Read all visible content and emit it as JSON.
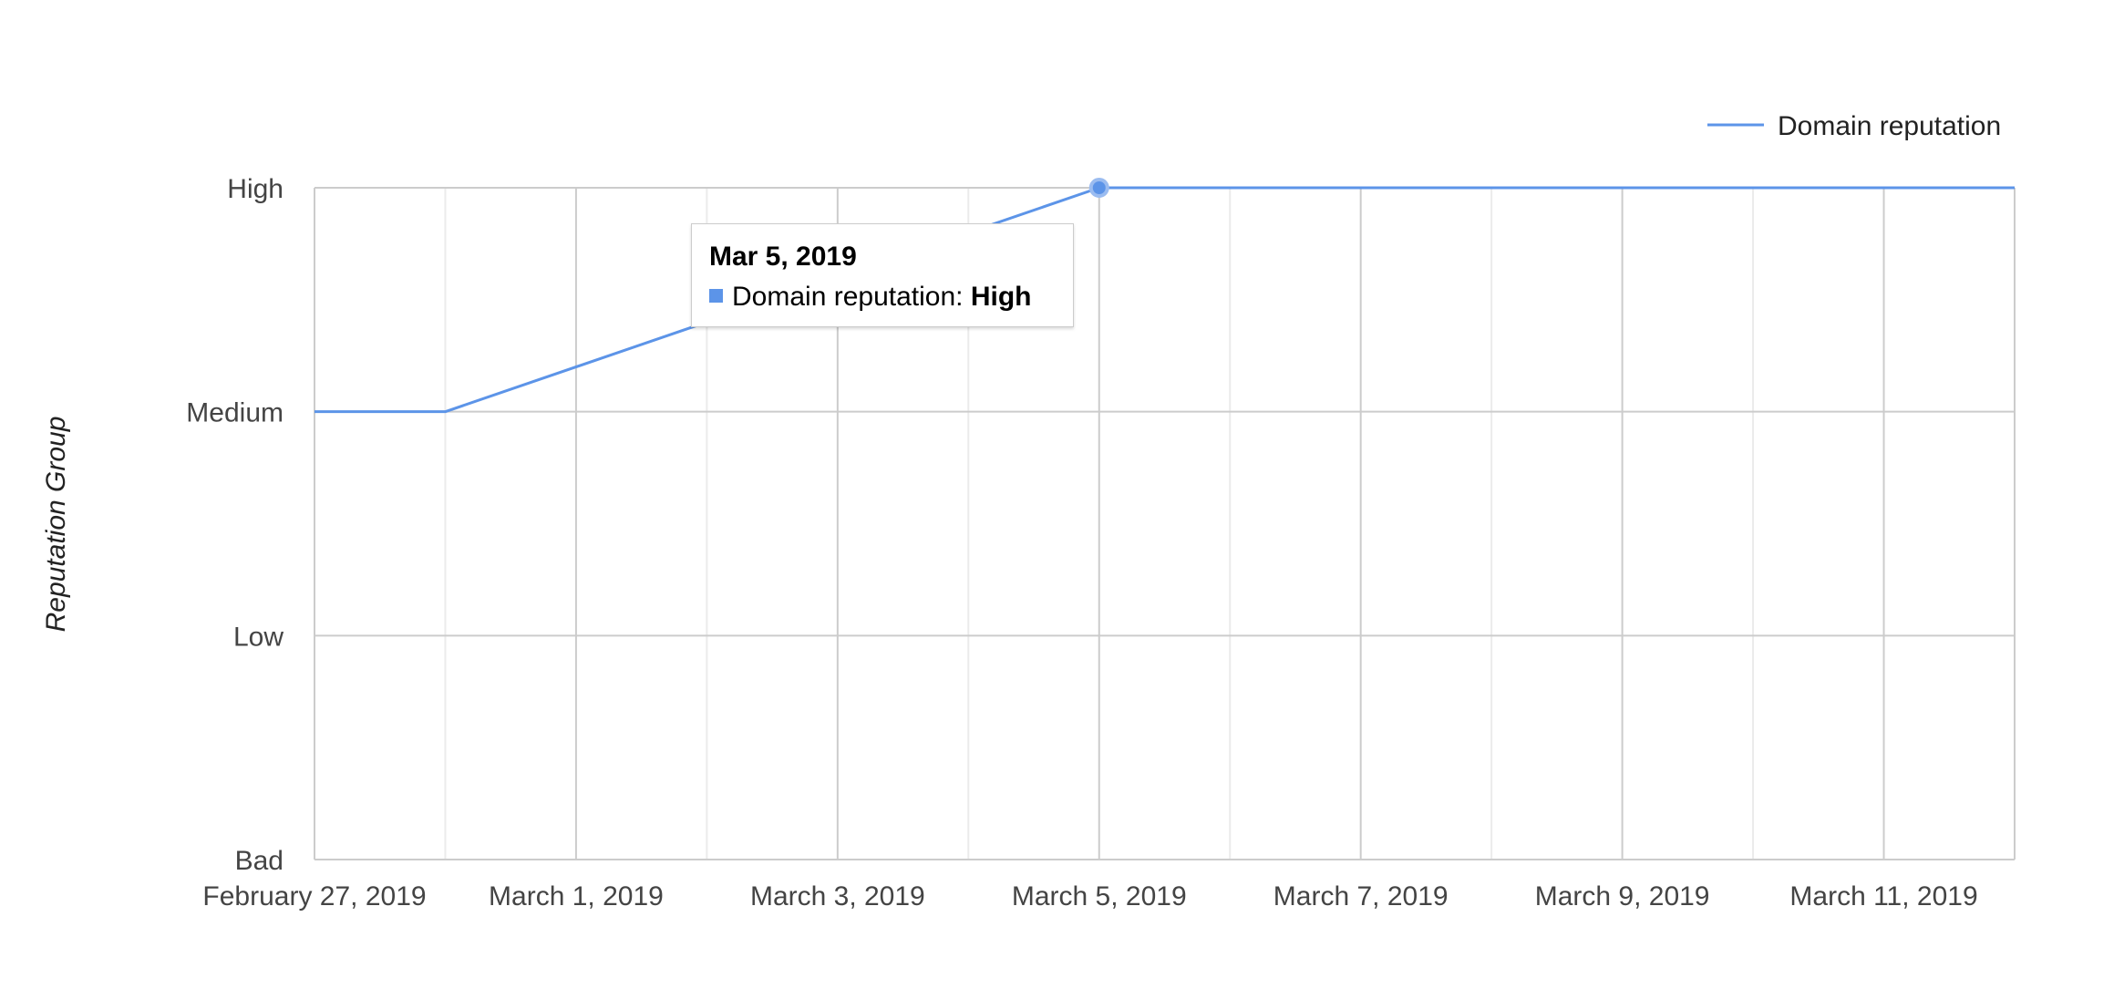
{
  "chart_data": {
    "type": "line",
    "title": "",
    "xlabel": "",
    "ylabel": "Reputation Group",
    "y_categories": [
      "Bad",
      "Low",
      "Medium",
      "High"
    ],
    "x_ticks": [
      "February 27, 2019",
      "March 1, 2019",
      "March 3, 2019",
      "March 5, 2019",
      "March 7, 2019",
      "March 9, 2019",
      "March 11, 2019"
    ],
    "xlim": [
      "2019-02-27",
      "2019-03-12"
    ],
    "series": [
      {
        "name": "Domain reputation",
        "color": "#5c94e8",
        "points": [
          {
            "x": "2019-02-27",
            "y": "Medium"
          },
          {
            "x": "2019-02-28",
            "y": "Medium"
          },
          {
            "x": "2019-03-05",
            "y": "High"
          },
          {
            "x": "2019-03-06",
            "y": "High"
          },
          {
            "x": "2019-03-07",
            "y": "High"
          },
          {
            "x": "2019-03-08",
            "y": "High"
          },
          {
            "x": "2019-03-09",
            "y": "High"
          },
          {
            "x": "2019-03-10",
            "y": "High"
          },
          {
            "x": "2019-03-11",
            "y": "High"
          },
          {
            "x": "2019-03-12",
            "y": "High"
          }
        ]
      }
    ],
    "legend": {
      "position": "top-right",
      "label": "Domain reputation"
    },
    "grid": true,
    "highlighted_point": {
      "x": "2019-03-05",
      "y": "High"
    },
    "tooltip": {
      "date": "Mar 5, 2019",
      "label": "Domain reputation: ",
      "value": "High"
    }
  }
}
